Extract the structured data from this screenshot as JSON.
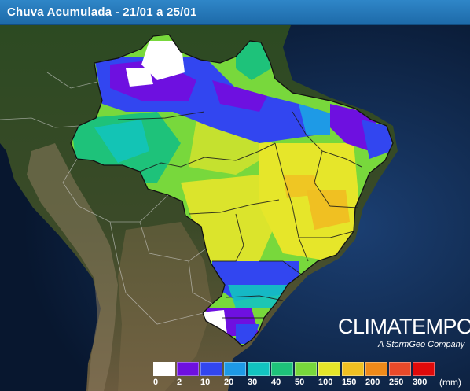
{
  "header": {
    "title": "Chuva Acumulada - 21/01 a 25/01"
  },
  "brand": {
    "name": "CLIMATEMPO",
    "tagline": "A StormGeo Company"
  },
  "legend": {
    "unit": "(mm)",
    "ticks": [
      "0",
      "2",
      "10",
      "20",
      "30",
      "40",
      "50",
      "100",
      "150",
      "200",
      "250",
      "300"
    ],
    "colors": [
      "#ffffff",
      "#6e10e0",
      "#3246f0",
      "#1e9ae6",
      "#12c4c0",
      "#1ec27a",
      "#78d83c",
      "#e6e62a",
      "#f0c022",
      "#ef8a1a",
      "#e84a2a",
      "#e00a0a"
    ]
  },
  "colors": {
    "ocean": "#0b1f3d",
    "titlebar": "#2174b6"
  }
}
